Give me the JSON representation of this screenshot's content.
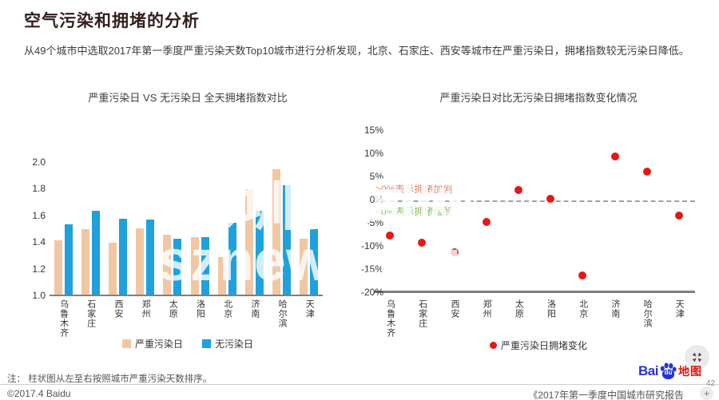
{
  "page": {
    "title": "空气污染和拥堵的分析",
    "subtitle": "从49个城市中选取2017年第一季度严重污染天数Top10城市进行分析发现，北京、石家庄、西安等城市在严重污染日，拥堵指数较无污染日降低。"
  },
  "watermark": {
    "line1": "深圳新闻网",
    "line2": "sznews.com"
  },
  "chart_data": [
    {
      "type": "bar",
      "title": "严重污染日 VS 无污染日 全天拥堵指数对比",
      "categories": [
        "乌鲁木齐",
        "石家庄",
        "西安",
        "郑州",
        "太原",
        "洛阳",
        "北京",
        "济南",
        "哈尔滨",
        "天津"
      ],
      "series": [
        {
          "name": "严重污染日",
          "color": "#f1c7a3",
          "values": [
            1.41,
            1.49,
            1.39,
            1.5,
            1.45,
            1.43,
            1.28,
            1.79,
            1.94,
            1.42
          ]
        },
        {
          "name": "无污染日",
          "color": "#1ea1dd",
          "values": [
            1.53,
            1.63,
            1.57,
            1.56,
            1.42,
            1.43,
            1.54,
            1.63,
            1.82,
            1.49
          ]
        }
      ],
      "ylim": [
        1.0,
        2.0
      ],
      "ytick_labels": [
        "2.0",
        "1.8",
        "1.6",
        "1.4",
        "1.2",
        "1.0"
      ],
      "ytick_values": [
        2.0,
        1.8,
        1.6,
        1.4,
        1.2,
        1.0
      ],
      "ylabel": "",
      "xlabel": "",
      "grid": false,
      "legend_position": "bottom"
    },
    {
      "type": "scatter",
      "title": "严重污染日对比无污染日拥堵指数变化情况",
      "categories": [
        "乌鲁木齐",
        "石家庄",
        "西安",
        "郑州",
        "太原",
        "洛阳",
        "北京",
        "济南",
        "哈尔滨",
        "天津"
      ],
      "series": [
        {
          "name": "严重污染日拥堵变化",
          "color": "#e21916",
          "values": [
            -7.6,
            -9.2,
            -11.2,
            -4.7,
            2.2,
            0.4,
            -16.2,
            9.4,
            6.2,
            -3.3
          ]
        }
      ],
      "ylim": [
        -20,
        15
      ],
      "ytick_labels": [
        "15%",
        "10%",
        "5%",
        "0%",
        "-5%",
        "-10%",
        "-15%",
        "-20%"
      ],
      "ytick_values": [
        15,
        10,
        5,
        0,
        -5,
        -10,
        -15,
        -20
      ],
      "zero_line": "dashed",
      "grid": false,
      "legend_position": "bottom",
      "annotations": [
        {
          "text": ">0%表示拥堵加剧",
          "color": "#e08570"
        },
        {
          "text": "<0%表示拥堵缓解",
          "color": "#8cbf66"
        }
      ]
    }
  ],
  "footer": {
    "note": "注：  柱状图从左至右按照城市严重污染天数排序。",
    "copyright": "©2017.4 Baidu",
    "report": "《2017年第一季度中国城市研究报告",
    "page_number": "42",
    "plus_label": "+",
    "logo": {
      "bai": "Bai",
      "du": "du",
      "map": "地图"
    }
  }
}
